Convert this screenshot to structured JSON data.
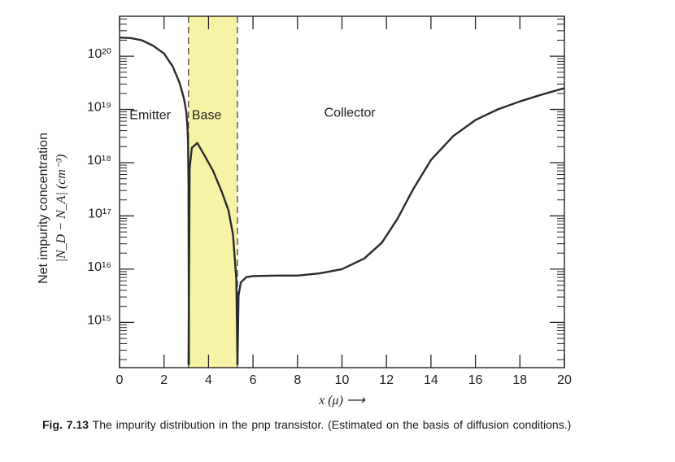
{
  "chart_data": {
    "type": "line",
    "title": "",
    "xlabel": "x (μ) ⟶",
    "ylabel_line1": "Net impurity concentration",
    "ylabel_line2": "|N_D − N_A| (cm⁻³)",
    "xlim": [
      0,
      20
    ],
    "ylim_log10": [
      14.15,
      20.75
    ],
    "y_scale": "log",
    "grid": false,
    "x_ticks": [
      0,
      2,
      4,
      6,
      8,
      10,
      12,
      14,
      16,
      18,
      20
    ],
    "y_ticks": [
      {
        "exp": 20,
        "label": "10²⁰"
      },
      {
        "exp": 19,
        "label": "10¹⁹"
      },
      {
        "exp": 18,
        "label": "10¹⁸"
      },
      {
        "exp": 17,
        "label": "10¹⁷"
      },
      {
        "exp": 16,
        "label": "10¹⁶"
      },
      {
        "exp": 15,
        "label": "10¹⁵"
      }
    ],
    "regions": [
      {
        "name": "Emitter",
        "label": "Emitter",
        "x_start": 0,
        "x_end": 3.1
      },
      {
        "name": "Base",
        "label": "Base",
        "x_start": 3.1,
        "x_end": 5.3,
        "color": "#f7f3a6"
      },
      {
        "name": "Collector",
        "label": "Collector",
        "x_start": 5.3,
        "x_end": 20
      }
    ],
    "series": [
      {
        "segment": "emitter",
        "points": [
          [
            0,
            20.35
          ],
          [
            0.5,
            20.34
          ],
          [
            1,
            20.3
          ],
          [
            1.5,
            20.2
          ],
          [
            2,
            20.05
          ],
          [
            2.4,
            19.8
          ],
          [
            2.7,
            19.5
          ],
          [
            2.9,
            19.2
          ],
          [
            3.0,
            18.95
          ],
          [
            3.05,
            18.7
          ],
          [
            3.08,
            18.4
          ],
          [
            3.1,
            17.6
          ],
          [
            3.12,
            14.2
          ]
        ]
      },
      {
        "segment": "base",
        "points": [
          [
            3.1,
            14.2
          ],
          [
            3.15,
            17.9
          ],
          [
            3.25,
            18.28
          ],
          [
            3.5,
            18.37
          ],
          [
            3.8,
            18.15
          ],
          [
            4.2,
            17.85
          ],
          [
            4.6,
            17.45
          ],
          [
            4.9,
            17.1
          ],
          [
            5.1,
            16.65
          ],
          [
            5.25,
            15.8
          ],
          [
            5.3,
            14.2
          ]
        ]
      },
      {
        "segment": "collector",
        "points": [
          [
            5.3,
            14.2
          ],
          [
            5.35,
            15.5
          ],
          [
            5.45,
            15.75
          ],
          [
            5.7,
            15.85
          ],
          [
            6,
            15.87
          ],
          [
            7,
            15.88
          ],
          [
            8,
            15.88
          ],
          [
            9,
            15.92
          ],
          [
            10,
            16.0
          ],
          [
            11,
            16.2
          ],
          [
            11.8,
            16.5
          ],
          [
            12.5,
            16.95
          ],
          [
            13.2,
            17.5
          ],
          [
            14,
            18.05
          ],
          [
            15,
            18.5
          ],
          [
            16,
            18.8
          ],
          [
            17,
            19.0
          ],
          [
            18,
            19.15
          ],
          [
            19,
            19.28
          ],
          [
            20,
            19.4
          ]
        ]
      }
    ]
  },
  "caption": {
    "fig_num": "Fig. 7.13",
    "text": "The impurity distribution in the pnp transistor.  (Estimated on the basis of diffusion conditions.)"
  }
}
